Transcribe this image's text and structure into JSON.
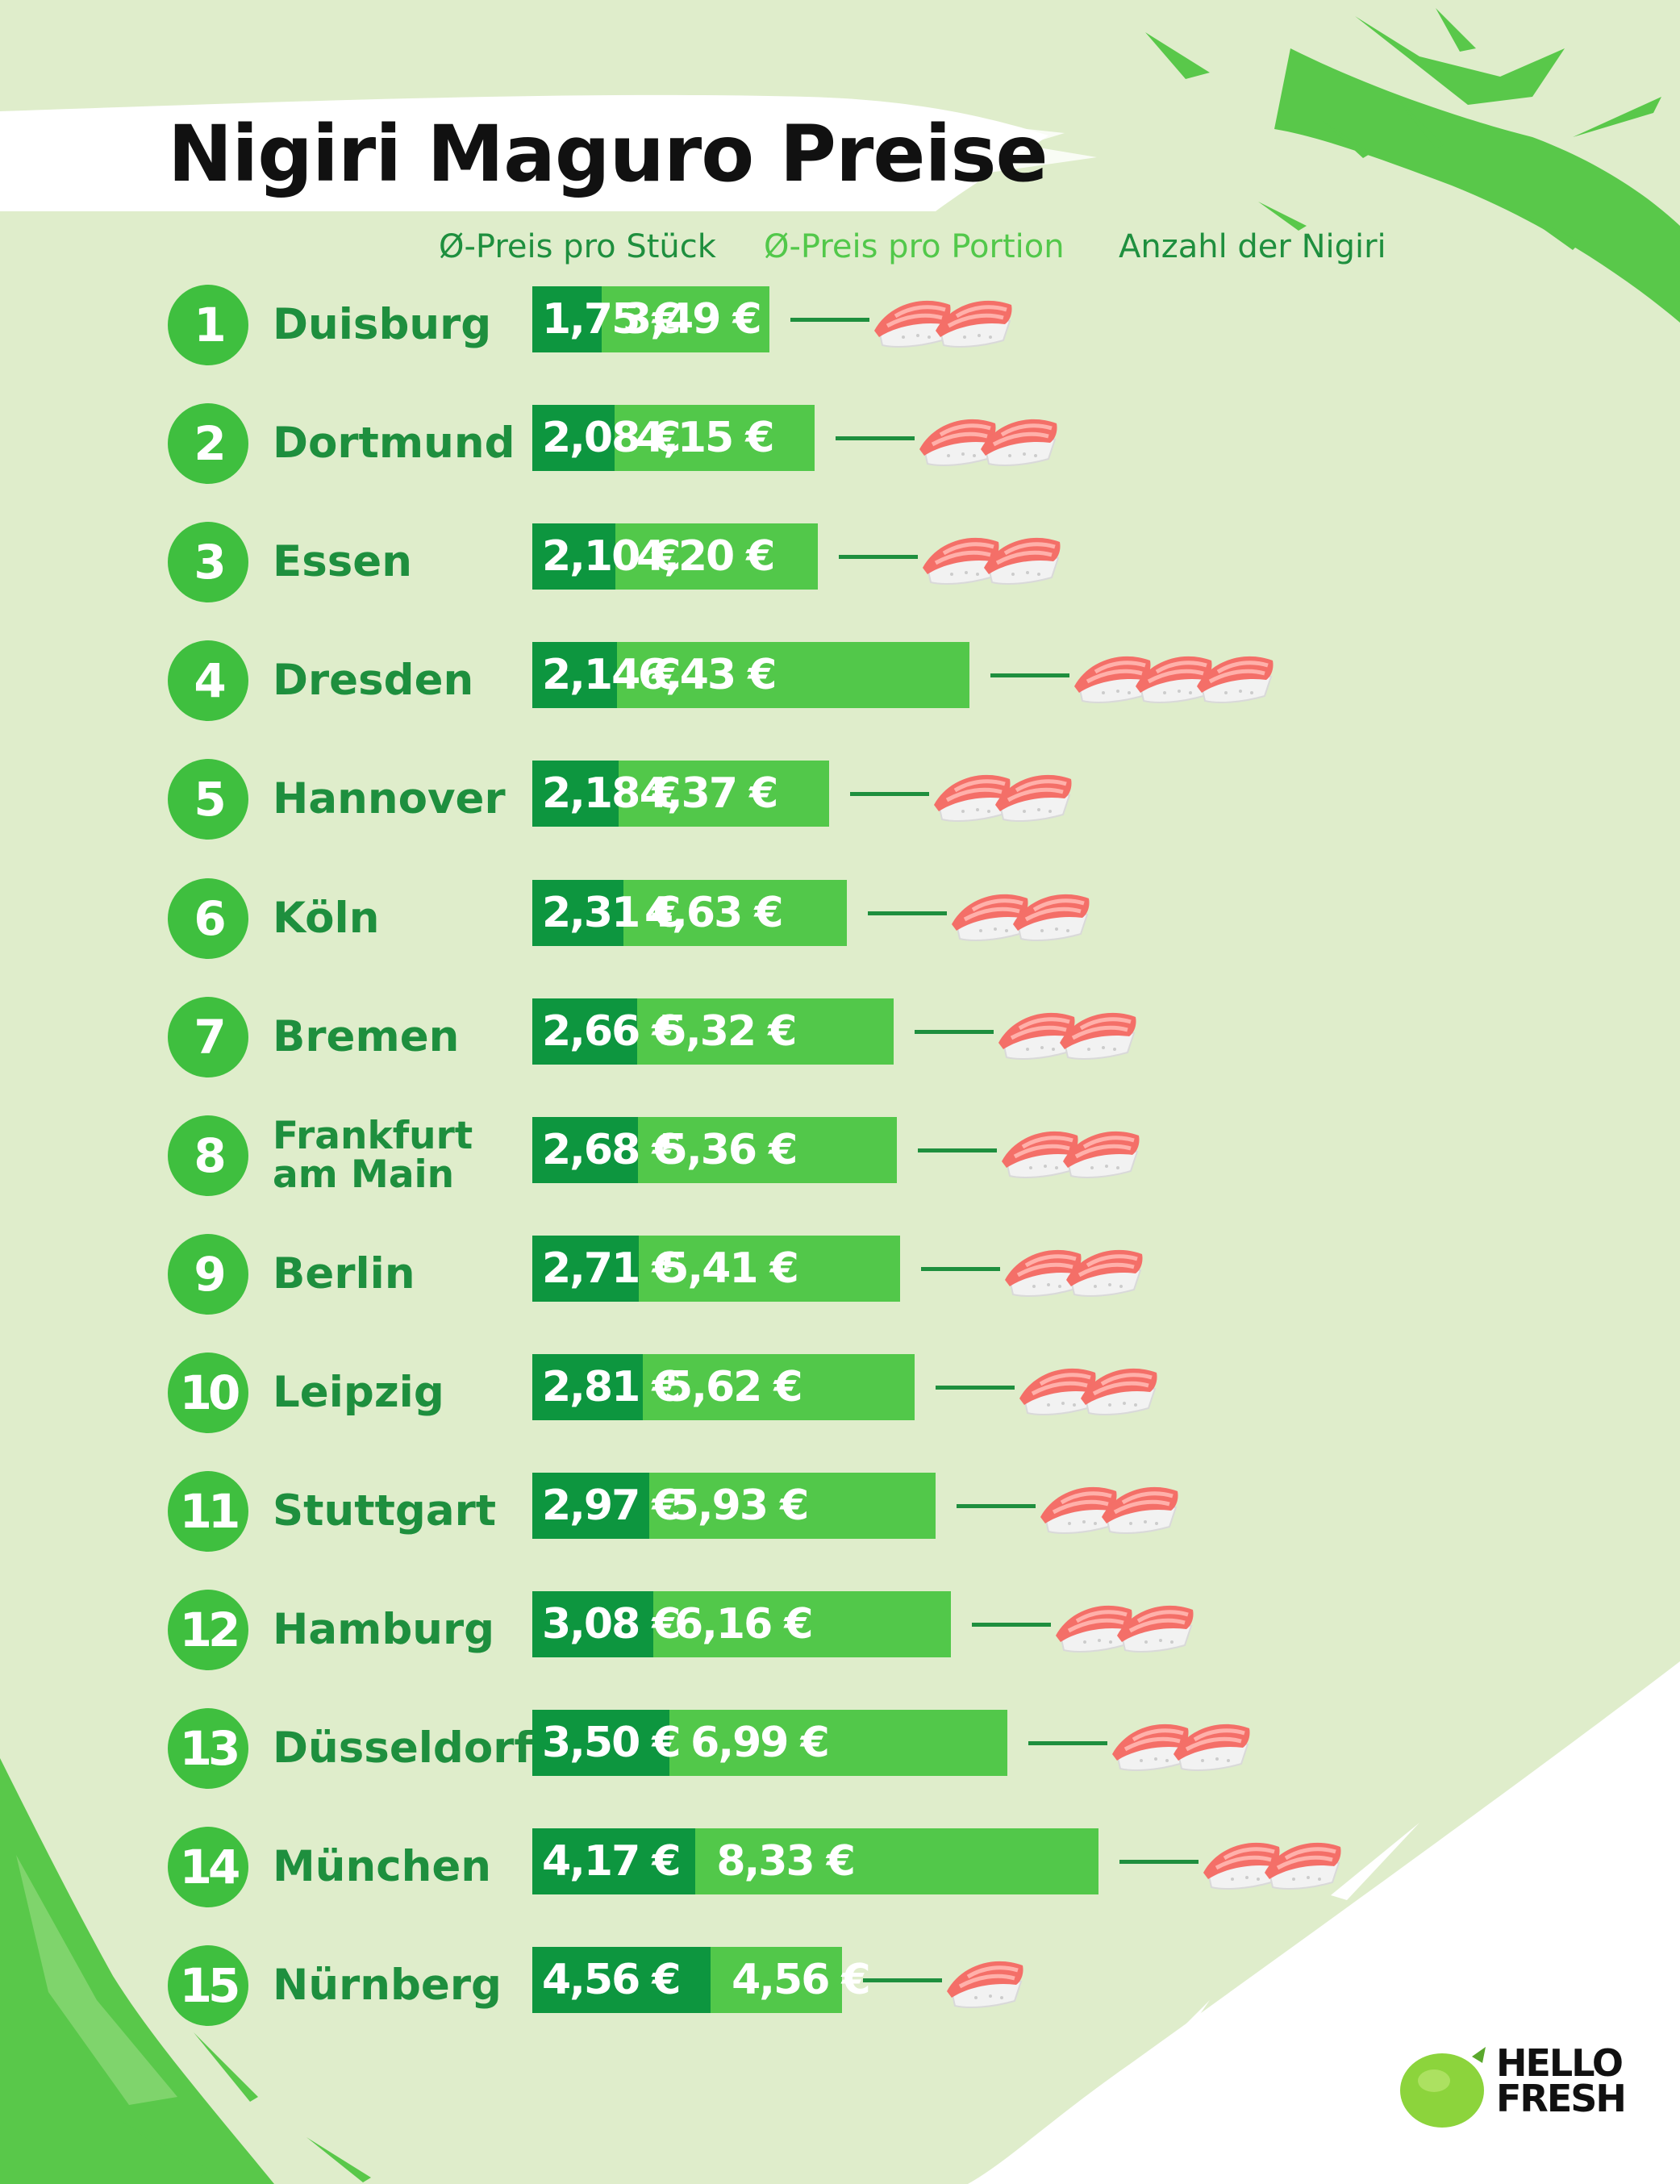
{
  "title": "Nigiri Maguro Preise",
  "legend": {
    "piece": "Ø-Preis pro Stück",
    "portion": "Ø-Preis pro Portion",
    "count": "Anzahl der Nigiri"
  },
  "colors": {
    "piece_bar": "#0d963f",
    "portion_bar": "#52c84a",
    "rank_badge": "#3fbf3f",
    "city_text": "#1e8f3e",
    "background": "#dfedcb",
    "legend_portion": "#52c84a"
  },
  "logo": {
    "line1": "HELLO",
    "line2": "FRESH",
    "icon": "lime-icon"
  },
  "chart_data": {
    "type": "bar",
    "title": "Nigiri Maguro Preise",
    "orientation": "horizontal",
    "stacked_overlay": true,
    "categories": [
      "Duisburg",
      "Dortmund",
      "Essen",
      "Dresden",
      "Hannover",
      "Köln",
      "Bremen",
      "Frankfurt am Main",
      "Berlin",
      "Leipzig",
      "Stuttgart",
      "Hamburg",
      "Düsseldorf",
      "München",
      "Nürnberg"
    ],
    "ranks": [
      "1",
      "2",
      "3",
      "4",
      "5",
      "6",
      "7",
      "8",
      "9",
      "10",
      "11",
      "12",
      "13",
      "14",
      "15"
    ],
    "series": [
      {
        "name": "Ø-Preis pro Stück",
        "values": [
          1.75,
          2.08,
          2.1,
          2.14,
          2.18,
          2.31,
          2.66,
          2.68,
          2.71,
          2.81,
          2.97,
          3.08,
          3.5,
          4.17,
          4.56
        ],
        "labels": [
          "1,75 €",
          "2,08 €",
          "2,10 €",
          "2,14 €",
          "2,18 €",
          "2,31 €",
          "2,66 €",
          "2,68 €",
          "2,71 €",
          "2,81 €",
          "2,97 €",
          "3,08 €",
          "3,50 €",
          "4,17 €",
          "4,56 €"
        ]
      },
      {
        "name": "Ø-Preis pro Portion",
        "values": [
          3.49,
          4.15,
          4.2,
          6.43,
          4.37,
          4.63,
          5.32,
          5.36,
          5.41,
          5.62,
          5.93,
          6.16,
          6.99,
          8.33,
          4.56
        ],
        "labels": [
          "3,49 €",
          "4,15 €",
          "4,20 €",
          "6,43 €",
          "4,37 €",
          "4,63 €",
          "5,32 €",
          "5,36 €",
          "5,41 €",
          "5,62 €",
          "5,93 €",
          "6,16 €",
          "6,99 €",
          "8,33 €",
          "4,56 €"
        ]
      },
      {
        "name": "Anzahl der Nigiri",
        "values": [
          2,
          2,
          2,
          3,
          2,
          2,
          2,
          2,
          2,
          2,
          2,
          2,
          2,
          2,
          1
        ]
      }
    ],
    "legend_position": "top",
    "grid": false
  }
}
